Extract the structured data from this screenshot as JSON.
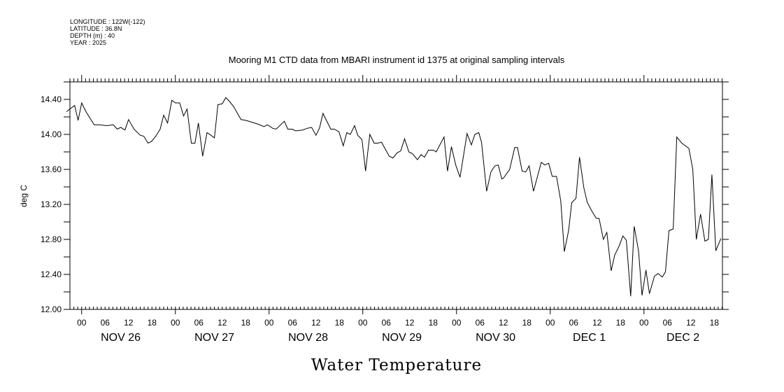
{
  "metadata": {
    "longitude": "LONGITUDE : 122W(-122)",
    "latitude": "LATITUDE : 36.8N",
    "depth": "DEPTH (m) : 40",
    "year": "YEAR : 2025"
  },
  "chart_data": {
    "type": "line",
    "title": "Mooring M1 CTD data from MBARI instrument id 1375 at original sampling intervals",
    "xlabel": "Water Temperature",
    "ylabel": "deg C",
    "x_units": "hours since NOV 26 00:00",
    "xlim": [
      -3.0,
      164.1
    ],
    "ylim": [
      12.0,
      14.6
    ],
    "y_ticks": [
      12.0,
      12.4,
      12.8,
      13.2,
      13.6,
      14.0,
      14.4
    ],
    "y_tick_labels": [
      "12.00",
      "12.40",
      "12.80",
      "13.20",
      "13.60",
      "14.00",
      "14.40"
    ],
    "hour_tick_labels": [
      "00",
      "06",
      "12",
      "18"
    ],
    "day_labels": [
      "NOV 26",
      "NOV 27",
      "NOV 28",
      "NOV 29",
      "NOV 30",
      "DEC  1",
      "DEC  2"
    ],
    "grid": false,
    "line_color": "#000000",
    "series": [
      {
        "name": "Water Temperature",
        "x": [
          -3.9,
          -1.8,
          -0.9,
          0,
          1.1,
          3.2,
          4.5,
          6.4,
          8.1,
          9.1,
          10.0,
          11.1,
          12.0,
          13.4,
          15.0,
          15.9,
          17.0,
          17.9,
          19.0,
          20.1,
          21.0,
          22.0,
          23.1,
          24.0,
          25.1,
          26.1,
          27.0,
          28.1,
          29.0,
          29.9,
          31.0,
          32.1,
          33.1,
          34.0,
          34.9,
          36.0,
          36.9,
          37.8,
          38.9,
          40.8,
          42.1,
          45.0,
          46.7,
          47.6,
          48.9,
          49.8,
          51.9,
          52.8,
          53.9,
          54.8,
          56.6,
          57.8,
          58.9,
          60.0,
          60.9,
          61.8,
          62.9,
          63.8,
          64.7,
          65.9,
          67.0,
          67.9,
          68.8,
          69.9,
          70.7,
          71.8,
          72.7,
          73.8,
          74.9,
          75.8,
          76.8,
          77.9,
          78.8,
          79.7,
          80.8,
          81.7,
          82.7,
          83.8,
          84.7,
          86.0,
          86.9,
          87.8,
          88.8,
          90.1,
          90.8,
          92.8,
          93.7,
          94.7,
          95.8,
          96.9,
          98.7,
          99.8,
          100.7,
          101.7,
          102.4,
          103.7,
          104.8,
          105.8,
          106.7,
          107.6,
          108.0,
          109.6,
          110.9,
          111.6,
          112.8,
          113.7,
          114.6,
          115.7,
          117.7,
          118.6,
          119.6,
          120.5,
          121.6,
          122.7,
          123.6,
          124.7,
          125.5,
          126.6,
          127.5,
          128.6,
          129.5,
          130.7,
          131.8,
          132.5,
          133.6,
          134.5,
          135.6,
          136.5,
          137.7,
          138.6,
          139.5,
          140.6,
          141.5,
          142.6,
          143.5,
          144.5,
          145.4,
          146.7,
          147.6,
          148.7,
          149.5,
          150.4,
          151.5,
          152.4,
          153.7,
          155.5,
          156.5,
          157.4,
          158.5,
          159.6,
          160.5,
          161.4,
          162.4,
          163.7
        ],
        "y": [
          14.26,
          14.33,
          14.16,
          14.36,
          14.26,
          14.11,
          14.11,
          14.1,
          14.11,
          14.06,
          14.08,
          14.05,
          14.17,
          14.06,
          13.99,
          13.98,
          13.9,
          13.92,
          13.98,
          14.06,
          14.22,
          14.13,
          14.39,
          14.36,
          14.36,
          14.21,
          14.29,
          13.9,
          13.9,
          14.13,
          13.75,
          14.02,
          13.99,
          13.96,
          14.34,
          14.35,
          14.42,
          14.38,
          14.32,
          14.17,
          14.16,
          14.12,
          14.09,
          14.11,
          14.07,
          14.06,
          14.15,
          14.06,
          14.06,
          14.04,
          14.05,
          14.07,
          14.08,
          13.99,
          14.07,
          14.24,
          14.14,
          14.06,
          14.06,
          14.03,
          13.87,
          14.02,
          14.0,
          14.1,
          13.99,
          13.94,
          13.58,
          14.0,
          13.9,
          13.9,
          13.91,
          13.82,
          13.75,
          13.73,
          13.79,
          13.81,
          13.95,
          13.8,
          13.78,
          13.71,
          13.77,
          13.74,
          13.82,
          13.82,
          13.8,
          13.97,
          13.58,
          13.86,
          13.65,
          13.51,
          14.01,
          13.88,
          14.0,
          14.02,
          13.91,
          13.35,
          13.57,
          13.64,
          13.65,
          13.49,
          13.5,
          13.6,
          13.85,
          13.85,
          13.58,
          13.57,
          13.64,
          13.35,
          13.68,
          13.65,
          13.67,
          13.52,
          13.52,
          13.24,
          12.66,
          12.9,
          13.22,
          13.27,
          13.74,
          13.39,
          13.22,
          13.12,
          13.04,
          13.04,
          12.8,
          12.88,
          12.44,
          12.62,
          12.73,
          12.84,
          12.79,
          12.15,
          12.95,
          12.67,
          12.16,
          12.45,
          12.18,
          12.38,
          12.41,
          12.37,
          12.43,
          12.9,
          12.92,
          13.97,
          13.9,
          13.84,
          13.6,
          12.8,
          13.09,
          12.78,
          12.8,
          13.54,
          12.67,
          12.81
        ]
      }
    ]
  }
}
